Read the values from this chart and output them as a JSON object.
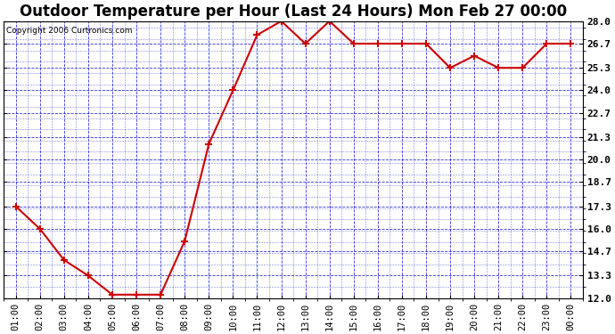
{
  "title": "Outdoor Temperature per Hour (Last 24 Hours) Mon Feb 27 00:00",
  "copyright": "Copyright 2006 Curtronics.com",
  "x_labels": [
    "01:00",
    "02:00",
    "03:00",
    "04:00",
    "05:00",
    "06:00",
    "07:00",
    "08:00",
    "09:00",
    "10:00",
    "11:00",
    "12:00",
    "13:00",
    "14:00",
    "15:00",
    "16:00",
    "17:00",
    "18:00",
    "19:00",
    "20:00",
    "21:00",
    "22:00",
    "23:00",
    "00:00"
  ],
  "y_values": [
    17.3,
    16.0,
    14.2,
    13.3,
    12.2,
    12.2,
    12.2,
    15.3,
    20.9,
    24.0,
    27.2,
    28.0,
    26.7,
    28.0,
    26.7,
    26.7,
    26.7,
    26.7,
    25.3,
    26.0,
    25.3,
    25.3,
    26.7,
    26.7
  ],
  "line_color": "#cc0000",
  "marker_color": "#cc0000",
  "grid_color": "#0000cc",
  "background_color": "#ffffff",
  "plot_bg_color": "#ffffff",
  "title_fontsize": 12,
  "ylim": [
    12.0,
    28.0
  ],
  "yticks": [
    12.0,
    13.3,
    14.7,
    16.0,
    17.3,
    18.7,
    20.0,
    21.3,
    22.7,
    24.0,
    25.3,
    26.7,
    28.0
  ]
}
